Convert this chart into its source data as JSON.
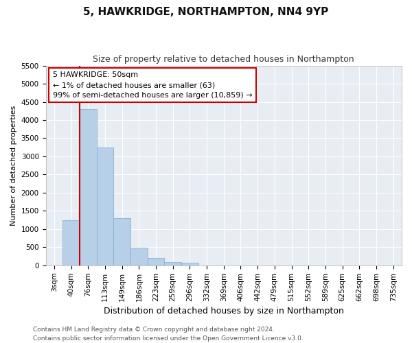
{
  "title": "5, HAWKRIDGE, NORTHAMPTON, NN4 9YP",
  "subtitle": "Size of property relative to detached houses in Northampton",
  "xlabel": "Distribution of detached houses by size in Northampton",
  "ylabel": "Number of detached properties",
  "categories": [
    "3sqm",
    "40sqm",
    "76sqm",
    "113sqm",
    "149sqm",
    "186sqm",
    "223sqm",
    "259sqm",
    "296sqm",
    "332sqm",
    "369sqm",
    "406sqm",
    "442sqm",
    "479sqm",
    "515sqm",
    "552sqm",
    "589sqm",
    "625sqm",
    "662sqm",
    "698sqm",
    "735sqm"
  ],
  "values": [
    0,
    1250,
    4300,
    3250,
    1300,
    480,
    200,
    100,
    70,
    0,
    0,
    0,
    0,
    0,
    0,
    0,
    0,
    0,
    0,
    0,
    0
  ],
  "bar_color": "#b8cfe8",
  "bar_edge_color": "#7aaad0",
  "vline_color": "#cc0000",
  "vline_x": 1.5,
  "annotation_text": "5 HAWKRIDGE: 50sqm\n← 1% of detached houses are smaller (63)\n99% of semi-detached houses are larger (10,859) →",
  "annotation_box_color": "#ffffff",
  "annotation_box_edge_color": "#cc0000",
  "ylim": [
    0,
    5500
  ],
  "yticks": [
    0,
    500,
    1000,
    1500,
    2000,
    2500,
    3000,
    3500,
    4000,
    4500,
    5000,
    5500
  ],
  "footer1": "Contains HM Land Registry data © Crown copyright and database right 2024.",
  "footer2": "Contains public sector information licensed under the Open Government Licence v3.0.",
  "background_color": "#ffffff",
  "plot_bg_color": "#e8edf4",
  "grid_color": "#ffffff",
  "title_fontsize": 11,
  "subtitle_fontsize": 9,
  "xlabel_fontsize": 9,
  "ylabel_fontsize": 8,
  "tick_fontsize": 7.5,
  "annotation_fontsize": 8,
  "footer_fontsize": 6.5
}
